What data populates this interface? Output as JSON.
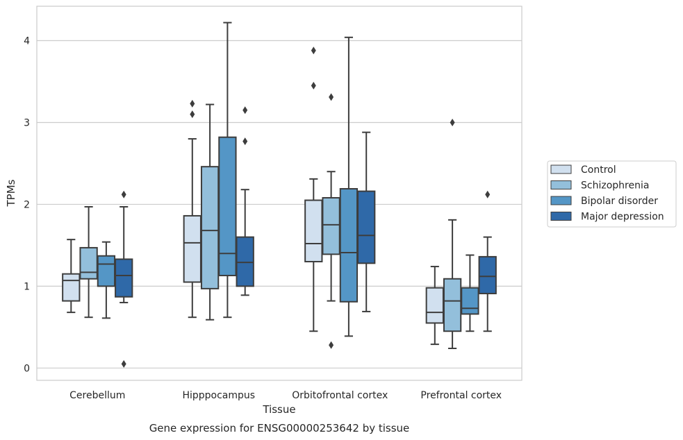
{
  "caption": "Gene expression for ENSG00000253642 by tissue",
  "chart_data": {
    "type": "box",
    "xlabel": "Tissue",
    "ylabel": "TPMs",
    "ylim": [
      -0.15,
      4.42
    ],
    "yticks": [
      0,
      1,
      2,
      3,
      4
    ],
    "grid": "horizontal",
    "legend_position": "right",
    "categories": [
      "Cerebellum",
      "Hipppocampus",
      "Orbitofrontal cortex",
      "Prefrontal cortex"
    ],
    "series": [
      {
        "name": "Control",
        "color": "#d1e0ef",
        "boxes": [
          {
            "whisker_low": 0.68,
            "q1": 0.82,
            "median": 1.07,
            "q3": 1.15,
            "whisker_high": 1.57,
            "outliers": []
          },
          {
            "whisker_low": 0.62,
            "q1": 1.05,
            "median": 1.53,
            "q3": 1.86,
            "whisker_high": 2.8,
            "outliers": [
              3.1,
              3.23
            ]
          },
          {
            "whisker_low": 0.45,
            "q1": 1.3,
            "median": 1.52,
            "q3": 2.05,
            "whisker_high": 2.31,
            "outliers": [
              3.45,
              3.88
            ]
          },
          {
            "whisker_low": 0.29,
            "q1": 0.55,
            "median": 0.68,
            "q3": 0.98,
            "whisker_high": 1.24,
            "outliers": []
          }
        ]
      },
      {
        "name": "Schizophrenia",
        "color": "#93bfdb",
        "boxes": [
          {
            "whisker_low": 0.62,
            "q1": 1.09,
            "median": 1.17,
            "q3": 1.47,
            "whisker_high": 1.97,
            "outliers": []
          },
          {
            "whisker_low": 0.59,
            "q1": 0.97,
            "median": 1.68,
            "q3": 2.46,
            "whisker_high": 3.22,
            "outliers": []
          },
          {
            "whisker_low": 0.82,
            "q1": 1.39,
            "median": 1.75,
            "q3": 2.08,
            "whisker_high": 2.4,
            "outliers": [
              0.28,
              3.31
            ]
          },
          {
            "whisker_low": 0.24,
            "q1": 0.45,
            "median": 0.82,
            "q3": 1.09,
            "whisker_high": 1.81,
            "outliers": [
              3.0
            ]
          }
        ]
      },
      {
        "name": "Bipolar disorder",
        "color": "#5496c6",
        "boxes": [
          {
            "whisker_low": 0.61,
            "q1": 1.0,
            "median": 1.27,
            "q3": 1.37,
            "whisker_high": 1.54,
            "outliers": []
          },
          {
            "whisker_low": 0.62,
            "q1": 1.13,
            "median": 1.4,
            "q3": 2.82,
            "whisker_high": 4.22,
            "outliers": []
          },
          {
            "whisker_low": 0.39,
            "q1": 0.81,
            "median": 1.41,
            "q3": 2.19,
            "whisker_high": 4.04,
            "outliers": []
          },
          {
            "whisker_low": 0.45,
            "q1": 0.66,
            "median": 0.73,
            "q3": 0.98,
            "whisker_high": 1.38,
            "outliers": []
          }
        ]
      },
      {
        "name": "Major depression",
        "color": "#2f69a8",
        "boxes": [
          {
            "whisker_low": 0.8,
            "q1": 0.87,
            "median": 1.13,
            "q3": 1.33,
            "whisker_high": 1.97,
            "outliers": [
              0.05,
              2.12
            ]
          },
          {
            "whisker_low": 0.89,
            "q1": 1.0,
            "median": 1.29,
            "q3": 1.6,
            "whisker_high": 2.18,
            "outliers": [
              2.77,
              3.15
            ]
          },
          {
            "whisker_low": 0.69,
            "q1": 1.28,
            "median": 1.62,
            "q3": 2.16,
            "whisker_high": 2.88,
            "outliers": []
          },
          {
            "whisker_low": 0.45,
            "q1": 0.91,
            "median": 1.12,
            "q3": 1.36,
            "whisker_high": 1.6,
            "outliers": [
              2.12
            ]
          }
        ]
      }
    ]
  }
}
